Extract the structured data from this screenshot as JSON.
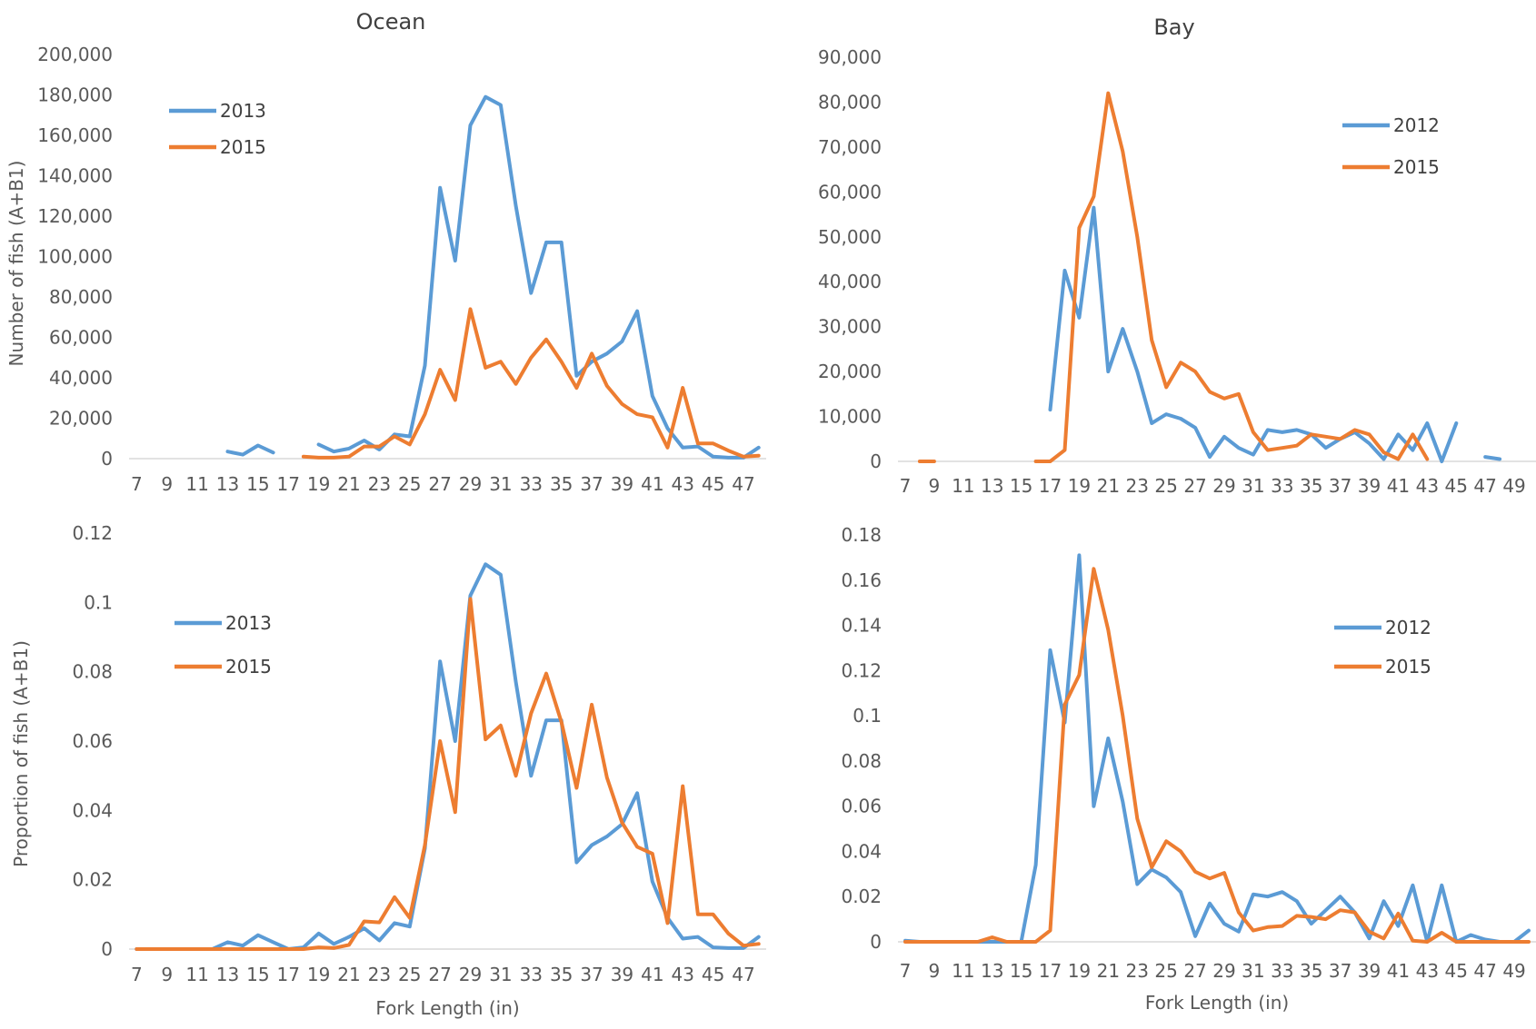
{
  "colors": {
    "series_a": "#5b9bd5",
    "series_b": "#ed7d31",
    "axis": "#d9d9d9",
    "text": "#595959"
  },
  "chart_data": [
    {
      "type": "line",
      "title": "Ocean",
      "xlabel": "",
      "ylabel": "Number of fish (A+B1)",
      "x": [
        7,
        8,
        9,
        10,
        11,
        12,
        13,
        14,
        15,
        16,
        17,
        18,
        19,
        20,
        21,
        22,
        23,
        24,
        25,
        26,
        27,
        28,
        29,
        30,
        31,
        32,
        33,
        34,
        35,
        36,
        37,
        38,
        39,
        40,
        41,
        42,
        43,
        44,
        45,
        46,
        47,
        48
      ],
      "x_tick_labels": [
        "7",
        "9",
        "11",
        "13",
        "15",
        "17",
        "19",
        "21",
        "23",
        "25",
        "27",
        "29",
        "31",
        "33",
        "35",
        "37",
        "39",
        "41",
        "43",
        "45",
        "47"
      ],
      "ylim": [
        0,
        200000
      ],
      "y_tick_labels": [
        "0",
        "20,000",
        "40,000",
        "60,000",
        "80,000",
        "100,000",
        "120,000",
        "140,000",
        "160,000",
        "180,000",
        "200,000"
      ],
      "legend_position": "top-left",
      "series": [
        {
          "name": "2013",
          "color": "#5b9bd5",
          "values": [
            null,
            null,
            null,
            null,
            null,
            null,
            3500,
            2000,
            6500,
            3000,
            null,
            null,
            7000,
            3500,
            5000,
            9000,
            4500,
            12000,
            11000,
            46000,
            134000,
            98000,
            165000,
            179000,
            175000,
            125000,
            82000,
            107000,
            107000,
            41000,
            48000,
            52000,
            58000,
            73000,
            31000,
            15000,
            5500,
            6000,
            1000,
            500,
            500,
            5500
          ]
        },
        {
          "name": "2015",
          "color": "#ed7d31",
          "values": [
            null,
            null,
            null,
            null,
            null,
            null,
            null,
            null,
            null,
            null,
            null,
            1000,
            500,
            500,
            1000,
            6000,
            6000,
            11000,
            7000,
            22000,
            44000,
            29000,
            74000,
            45000,
            48000,
            37000,
            50000,
            59000,
            48000,
            35000,
            52000,
            36000,
            27000,
            22000,
            20500,
            5500,
            35000,
            7500,
            7500,
            4000,
            1000,
            1500
          ]
        }
      ]
    },
    {
      "type": "line",
      "title": "Bay",
      "xlabel": "",
      "ylabel": "",
      "x": [
        7,
        8,
        9,
        10,
        11,
        12,
        13,
        14,
        15,
        16,
        17,
        18,
        19,
        20,
        21,
        22,
        23,
        24,
        25,
        26,
        27,
        28,
        29,
        30,
        31,
        32,
        33,
        34,
        35,
        36,
        37,
        38,
        39,
        40,
        41,
        42,
        43,
        44,
        45,
        46,
        47,
        48,
        49,
        50
      ],
      "x_tick_labels": [
        "7",
        "9",
        "11",
        "13",
        "15",
        "17",
        "19",
        "21",
        "23",
        "25",
        "27",
        "29",
        "31",
        "33",
        "35",
        "37",
        "39",
        "41",
        "43",
        "45",
        "47",
        "49"
      ],
      "ylim": [
        0,
        90000
      ],
      "y_tick_labels": [
        "0",
        "10,000",
        "20,000",
        "30,000",
        "40,000",
        "50,000",
        "60,000",
        "70,000",
        "80,000",
        "90,000"
      ],
      "legend_position": "right",
      "series": [
        {
          "name": "2012",
          "color": "#5b9bd5",
          "values": [
            null,
            null,
            null,
            null,
            null,
            null,
            null,
            null,
            null,
            null,
            11500,
            42500,
            32000,
            56500,
            20000,
            29500,
            20000,
            8500,
            10500,
            9500,
            7500,
            1000,
            5500,
            3000,
            1500,
            7000,
            6500,
            7000,
            6000,
            3000,
            5000,
            6500,
            4000,
            500,
            6000,
            2500,
            8500,
            0,
            8500,
            null,
            1000,
            500,
            null,
            null
          ]
        },
        {
          "name": "2015",
          "color": "#ed7d31",
          "values": [
            null,
            0,
            0,
            null,
            null,
            null,
            null,
            null,
            null,
            0,
            0,
            2500,
            52000,
            59000,
            82000,
            69000,
            50000,
            27000,
            16500,
            22000,
            20000,
            15500,
            14000,
            15000,
            6500,
            2500,
            3000,
            3500,
            6000,
            5500,
            5000,
            7000,
            6000,
            2000,
            500,
            6000,
            500,
            null,
            null,
            null,
            null,
            null,
            null,
            null
          ]
        }
      ]
    },
    {
      "type": "line",
      "title": "",
      "xlabel": "Fork Length (in)",
      "ylabel": "Proportion of fish (A+B1)",
      "x": [
        7,
        8,
        9,
        10,
        11,
        12,
        13,
        14,
        15,
        16,
        17,
        18,
        19,
        20,
        21,
        22,
        23,
        24,
        25,
        26,
        27,
        28,
        29,
        30,
        31,
        32,
        33,
        34,
        35,
        36,
        37,
        38,
        39,
        40,
        41,
        42,
        43,
        44,
        45,
        46,
        47,
        48
      ],
      "x_tick_labels": [
        "7",
        "9",
        "11",
        "13",
        "15",
        "17",
        "19",
        "21",
        "23",
        "25",
        "27",
        "29",
        "31",
        "33",
        "35",
        "37",
        "39",
        "41",
        "43",
        "45",
        "47"
      ],
      "ylim": [
        0,
        0.12
      ],
      "y_tick_labels": [
        "0",
        "0.02",
        "0.04",
        "0.06",
        "0.08",
        "0.1",
        "0.12"
      ],
      "legend_position": "top-left",
      "series": [
        {
          "name": "2013",
          "color": "#5b9bd5",
          "values": [
            0,
            0,
            0,
            0,
            0,
            0,
            0.002,
            0.001,
            0.004,
            0.002,
            0,
            0.0005,
            0.0045,
            0.0015,
            0.0035,
            0.006,
            0.0025,
            0.0075,
            0.0065,
            0.029,
            0.083,
            0.06,
            0.102,
            0.111,
            0.108,
            0.077,
            0.05,
            0.066,
            0.066,
            0.025,
            0.03,
            0.0325,
            0.036,
            0.045,
            0.0195,
            0.009,
            0.003,
            0.0035,
            0.0005,
            0.0003,
            0.0003,
            0.0035
          ]
        },
        {
          "name": "2015",
          "color": "#ed7d31",
          "values": [
            0,
            0,
            0,
            0,
            0,
            0,
            0,
            0,
            0,
            0,
            0,
            0,
            0.0005,
            0.0003,
            0.0012,
            0.008,
            0.0077,
            0.015,
            0.009,
            0.03,
            0.06,
            0.0395,
            0.101,
            0.0605,
            0.0645,
            0.05,
            0.068,
            0.0795,
            0.0655,
            0.0465,
            0.0705,
            0.0495,
            0.0365,
            0.0295,
            0.0275,
            0.0075,
            0.047,
            0.01,
            0.01,
            0.0045,
            0.001,
            0.0015
          ]
        }
      ]
    },
    {
      "type": "line",
      "title": "",
      "xlabel": "Fork Length (in)",
      "ylabel": "",
      "x": [
        7,
        8,
        9,
        10,
        11,
        12,
        13,
        14,
        15,
        16,
        17,
        18,
        19,
        20,
        21,
        22,
        23,
        24,
        25,
        26,
        27,
        28,
        29,
        30,
        31,
        32,
        33,
        34,
        35,
        36,
        37,
        38,
        39,
        40,
        41,
        42,
        43,
        44,
        45,
        46,
        47,
        48,
        49,
        50
      ],
      "x_tick_labels": [
        "7",
        "9",
        "11",
        "13",
        "15",
        "17",
        "19",
        "21",
        "23",
        "25",
        "27",
        "29",
        "31",
        "33",
        "35",
        "37",
        "39",
        "41",
        "43",
        "45",
        "47",
        "49"
      ],
      "ylim": [
        0,
        0.18
      ],
      "y_tick_labels": [
        "0",
        "0.02",
        "0.04",
        "0.06",
        "0.08",
        "0.1",
        "0.12",
        "0.14",
        "0.16",
        "0.18"
      ],
      "legend_position": "right",
      "series": [
        {
          "name": "2012",
          "color": "#5b9bd5",
          "values": [
            0.0005,
            0,
            0,
            0,
            0,
            0,
            0,
            0,
            0,
            0.034,
            0.129,
            0.097,
            0.171,
            0.06,
            0.09,
            0.062,
            0.0255,
            0.032,
            0.0285,
            0.022,
            0.0025,
            0.017,
            0.008,
            0.0045,
            0.021,
            0.02,
            0.022,
            0.018,
            0.008,
            0.014,
            0.02,
            0.013,
            0.0015,
            0.018,
            0.007,
            0.025,
            0,
            0.025,
            0,
            0.003,
            0.001,
            0,
            0,
            0.005
          ]
        },
        {
          "name": "2015",
          "color": "#ed7d31",
          "values": [
            0,
            0,
            0,
            0,
            0,
            0,
            0.002,
            0,
            0,
            0,
            0.005,
            0.105,
            0.118,
            0.165,
            0.138,
            0.1,
            0.0545,
            0.033,
            0.0445,
            0.04,
            0.031,
            0.028,
            0.0305,
            0.013,
            0.005,
            0.0065,
            0.007,
            0.0115,
            0.011,
            0.01,
            0.014,
            0.013,
            0.0045,
            0.0015,
            0.0125,
            0.0005,
            0,
            0.004,
            0,
            0,
            0,
            0,
            0,
            0
          ]
        }
      ]
    }
  ]
}
